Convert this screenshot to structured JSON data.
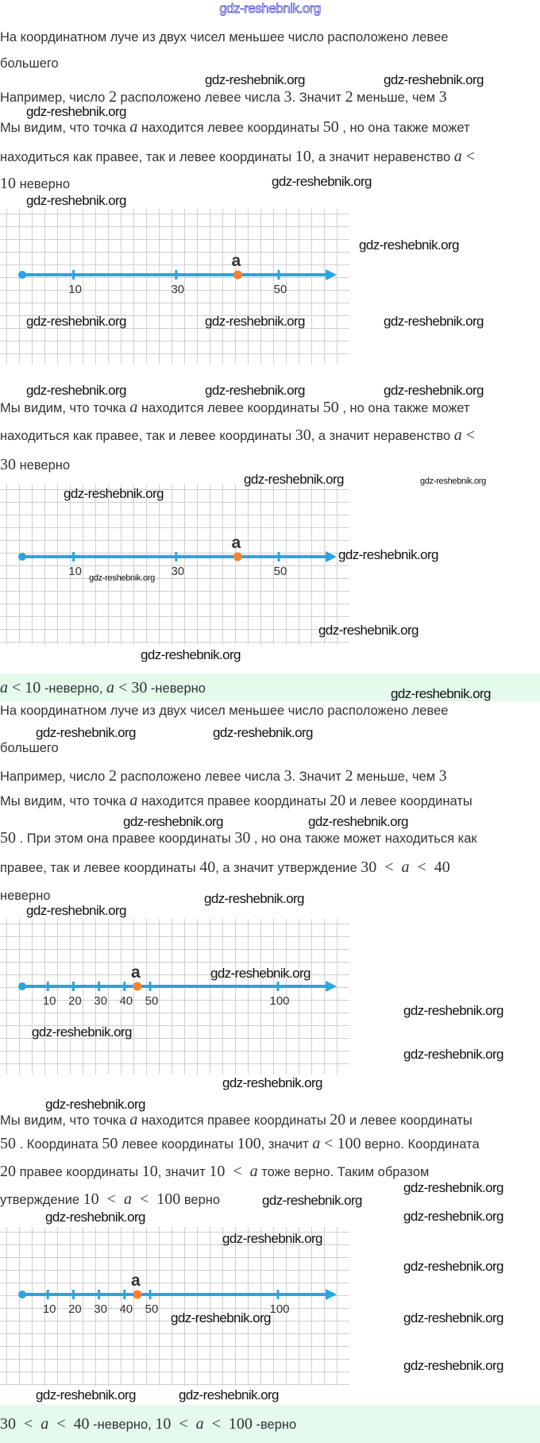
{
  "header": {
    "watermark": "gdz-reshebnik.org"
  },
  "watermark": "gdz-reshebnik.org",
  "colors": {
    "axis": "#2aa4e2",
    "point": "#f5822f",
    "answer_bg": "#e3faec",
    "header_watermark": "#3a3ad0"
  },
  "lines": [
    [
      {
        "t": "На координатном луче из двух чисел меньшее число расположено левее"
      }
    ],
    [
      {
        "t": "большего"
      }
    ],
    [
      {
        "t": "Например, число "
      },
      {
        "t": "2",
        "m": true
      },
      {
        "t": " расположено левее числа "
      },
      {
        "t": "3",
        "m": true
      },
      {
        "t": ". Значит "
      },
      {
        "t": "2",
        "m": true
      },
      {
        "t": " меньше, чем "
      },
      {
        "t": "3",
        "m": true
      }
    ],
    [
      {
        "t": "Мы видим, что точка "
      },
      {
        "t": "a",
        "m": true
      },
      {
        "t": " находится левее координаты "
      },
      {
        "t": "50",
        "m": true
      },
      {
        "t": " , но она также может"
      }
    ],
    [
      {
        "t": "находиться как правее, так и левее координаты "
      },
      {
        "t": "10",
        "m": true
      },
      {
        "t": ", а значит неравенство "
      },
      {
        "t": "a <",
        "m": true
      }
    ],
    [
      {
        "t": "10",
        "m": true
      },
      {
        "t": " неверно"
      }
    ],
    [
      {
        "t": "Мы видим, что точка "
      },
      {
        "t": "a",
        "m": true
      },
      {
        "t": " находится левее координаты "
      },
      {
        "t": "50",
        "m": true
      },
      {
        "t": " , но она также может"
      }
    ],
    [
      {
        "t": "находиться как правее, так и левее координаты "
      },
      {
        "t": "30",
        "m": true
      },
      {
        "t": ", а значит неравенство "
      },
      {
        "t": "a <",
        "m": true
      }
    ],
    [
      {
        "t": "30",
        "m": true
      },
      {
        "t": " неверно"
      }
    ],
    [
      {
        "t": "На координатном луче из двух чисел меньшее число расположено левее"
      }
    ],
    [
      {
        "t": "большего"
      }
    ],
    [
      {
        "t": "Например, число "
      },
      {
        "t": "2",
        "m": true
      },
      {
        "t": " расположено левее числа "
      },
      {
        "t": "3",
        "m": true
      },
      {
        "t": ". Значит "
      },
      {
        "t": "2",
        "m": true
      },
      {
        "t": " меньше, чем "
      },
      {
        "t": "3",
        "m": true
      }
    ],
    [
      {
        "t": "Мы видим, что точка "
      },
      {
        "t": "a",
        "m": true
      },
      {
        "t": " находится правее координаты "
      },
      {
        "t": "20",
        "m": true
      },
      {
        "t": " и левее координаты"
      }
    ],
    [
      {
        "t": "50",
        "m": true
      },
      {
        "t": " . При этом она правее координаты "
      },
      {
        "t": "30",
        "m": true
      },
      {
        "t": " , но она также может находиться как"
      }
    ],
    [
      {
        "t": "правее, так и левее координаты "
      },
      {
        "t": "40",
        "m": true
      },
      {
        "t": ", а значит утверждение "
      },
      {
        "t": "30  <  a  <  40",
        "m": true
      }
    ],
    [
      {
        "t": "неверно"
      }
    ],
    [
      {
        "t": "Мы видим, что точка "
      },
      {
        "t": "a",
        "m": true
      },
      {
        "t": " находится правее координаты "
      },
      {
        "t": "20",
        "m": true
      },
      {
        "t": " и левее координаты"
      }
    ],
    [
      {
        "t": "50",
        "m": true
      },
      {
        "t": " . Координата "
      },
      {
        "t": "50",
        "m": true
      },
      {
        "t": " левее координаты "
      },
      {
        "t": "100",
        "m": true
      },
      {
        "t": ", значит "
      },
      {
        "t": "a < 100",
        "m": true
      },
      {
        "t": " верно. Координата"
      }
    ],
    [
      {
        "t": "20",
        "m": true
      },
      {
        "t": " правее координаты "
      },
      {
        "t": "10",
        "m": true
      },
      {
        "t": ", значит "
      },
      {
        "t": "10  <  a",
        "m": true
      },
      {
        "t": " тоже верно. Таким образом"
      }
    ],
    [
      {
        "t": "утверждение "
      },
      {
        "t": "10  <  a  <  100",
        "m": true
      },
      {
        "t": " верно"
      }
    ]
  ],
  "answers": [
    [
      {
        "t": "a < 10",
        "m": true
      },
      {
        "t": " -неверно, "
      },
      {
        "t": "a < 30",
        "m": true
      },
      {
        "t": " -неверно"
      }
    ],
    [
      {
        "t": "30  <  a  <  40",
        "m": true
      },
      {
        "t": " -неверно, "
      },
      {
        "t": "10  <  a  <  100",
        "m": true
      },
      {
        "t": " -верно"
      }
    ]
  ],
  "number_lines": [
    {
      "ticks": [
        {
          "value": 10,
          "label": "10"
        },
        {
          "value": 30,
          "label": "30"
        },
        {
          "value": 50,
          "label": "50"
        }
      ],
      "point": {
        "label": "a",
        "value": 42
      }
    },
    {
      "ticks": [
        {
          "value": 10,
          "label": "10"
        },
        {
          "value": 30,
          "label": "30"
        },
        {
          "value": 50,
          "label": "50"
        }
      ],
      "point": {
        "label": "a",
        "value": 42
      }
    },
    {
      "ticks": [
        {
          "value": 10,
          "label": "10"
        },
        {
          "value": 20,
          "label": "20"
        },
        {
          "value": 30,
          "label": "30"
        },
        {
          "value": 40,
          "label": "40"
        },
        {
          "value": 50,
          "label": "50"
        },
        {
          "value": 100,
          "label": "100"
        }
      ],
      "point": {
        "label": "a",
        "value": 45
      }
    },
    {
      "ticks": [
        {
          "value": 10,
          "label": "10"
        },
        {
          "value": 20,
          "label": "20"
        },
        {
          "value": 30,
          "label": "30"
        },
        {
          "value": 40,
          "label": "40"
        },
        {
          "value": 50,
          "label": "50"
        },
        {
          "value": 100,
          "label": "100"
        }
      ],
      "point": {
        "label": "a",
        "value": 45
      }
    }
  ]
}
